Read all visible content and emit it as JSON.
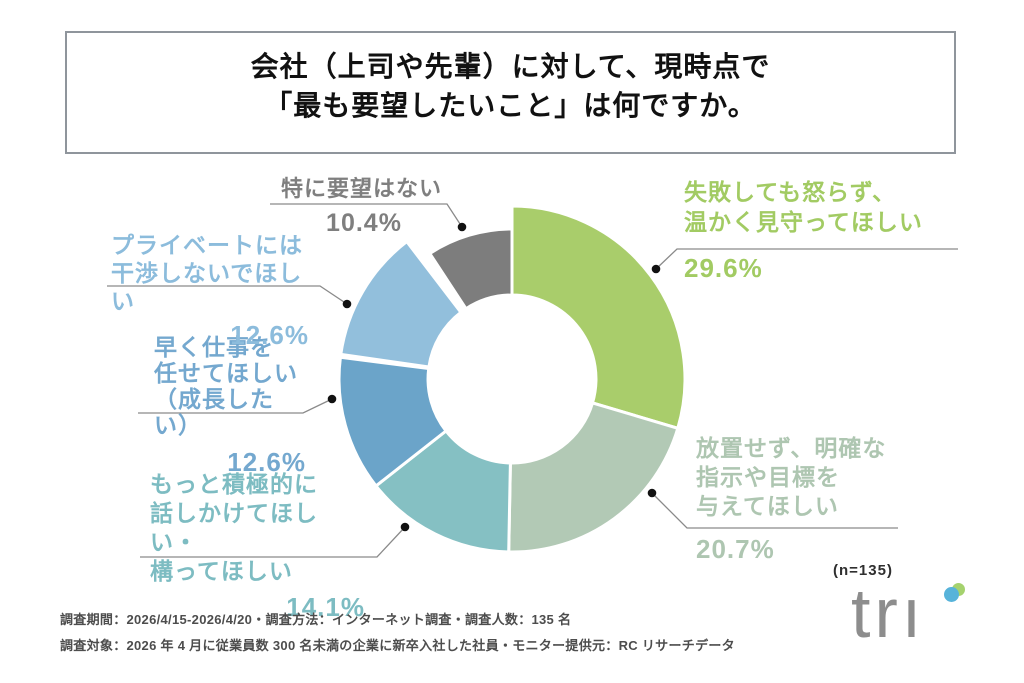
{
  "title": {
    "line1": "会社（上司や先輩）に対して、現時点で",
    "line2": "「最も要望したいこと」は何ですか。"
  },
  "chart_data": {
    "type": "pie",
    "subtype": "donut",
    "unit": "%",
    "direction": "clockwise",
    "start_angle_deg": 0,
    "n_label": "(n=135)",
    "slices": [
      {
        "label": "失敗しても怒らず、温かく見守ってほしい",
        "label_lines": [
          "失敗しても怒らず、",
          "温かく見守ってほしい"
        ],
        "value": 29.6,
        "percent_label": "29.6%",
        "color": "#a9cd6b",
        "text_color": "#a2cb63"
      },
      {
        "label": "放置せず、明確な指示や目標を与えてほしい",
        "label_lines": [
          "放置せず、明確な",
          "指示や目標を",
          "与えてほしい"
        ],
        "value": 20.7,
        "percent_label": "20.7%",
        "color": "#b2c9b5",
        "text_color": "#aec6b1"
      },
      {
        "label": "もっと積極的に話しかけてほしい・構ってほしい",
        "label_lines": [
          "もっと積極的に",
          "話しかけてほしい・",
          "構ってほしい"
        ],
        "value": 14.1,
        "percent_label": "14.1%",
        "color": "#85c0c3",
        "text_color": "#7dbcc2"
      },
      {
        "label": "早く仕事を任せてほしい（成長したい）",
        "label_lines": [
          "早く仕事を",
          "任せてほしい",
          "（成長したい）"
        ],
        "value": 12.6,
        "percent_label": "12.6%",
        "color": "#6ba4c9",
        "text_color": "#74a8cf"
      },
      {
        "label": "プライベートには干渉しないでほしい",
        "label_lines": [
          "プライベートには",
          "干渉しないでほしい"
        ],
        "value": 12.6,
        "percent_label": "12.6%",
        "color": "#92bfdc",
        "text_color": "#8cbcdc"
      },
      {
        "label": "特に要望はない",
        "label_lines": [
          "特に要望はない"
        ],
        "value": 10.4,
        "percent_label": "10.4%",
        "color": "#7d7d7d",
        "text_color": "#7f7f7f"
      }
    ]
  },
  "footer": {
    "line1": "調査期間：2026/4/15-2026/4/20・調査方法：インターネット調査・調査人数：135 名",
    "line2": "調査対象：2026 年 4 月に従業員数 300 名未満の企業に新卒入社した社員・モニター提供元：RC リサーチデータ"
  },
  "logo": {
    "text": "trı",
    "brand": "tri"
  },
  "colors": {
    "title_border": "#8f959c",
    "leader_line": "#8a8a8a",
    "leader_dot": "#111111",
    "footer_text": "#4d4d4d",
    "logo_gray": "#8d8d8d",
    "logo_dot_green": "#a5d26e",
    "logo_dot_blue": "#57b3da"
  }
}
